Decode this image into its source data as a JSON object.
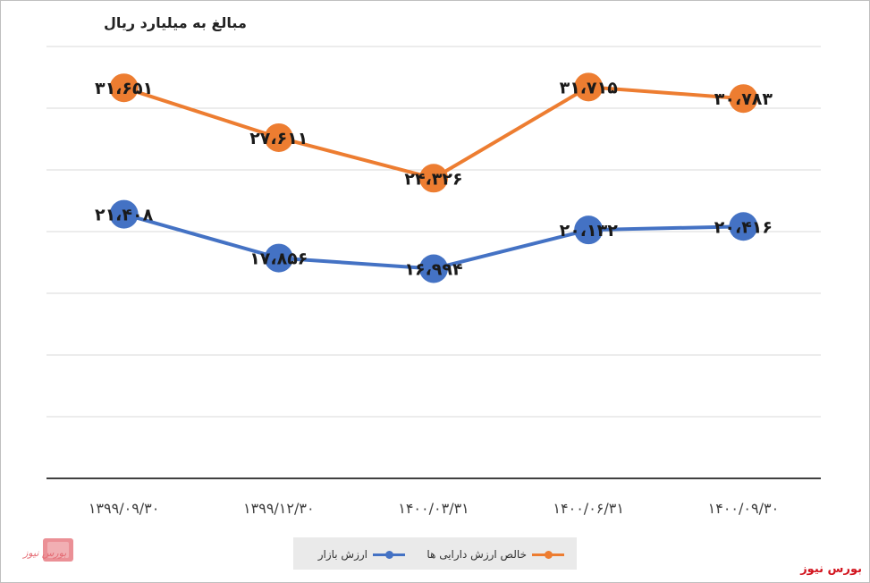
{
  "chart_data": {
    "type": "line",
    "unit_label": "مبالغ به میلیارد ریال",
    "categories": [
      "۱۳۹۹/۰۹/۳۰",
      "۱۳۹۹/۱۲/۳۰",
      "۱۴۰۰/۰۳/۳۱",
      "۱۴۰۰/۰۶/۳۱",
      "۱۴۰۰/۰۹/۳۰"
    ],
    "series": [
      {
        "name": "خالص ارزش دارایی ها",
        "color": "#ed7d31",
        "values": [
          31651,
          27611,
          24326,
          31715,
          30783
        ],
        "labels": [
          "۳۱،۶۵۱",
          "۲۷،۶۱۱",
          "۲۴،۳۲۶",
          "۳۱،۷۱۵",
          "۳۰،۷۸۳"
        ]
      },
      {
        "name": "ارزش بازار",
        "color": "#4472c4",
        "values": [
          21408,
          17856,
          16994,
          20132,
          20416
        ],
        "labels": [
          "۲۱،۴۰۸",
          "۱۷،۸۵۶",
          "۱۶،۹۹۴",
          "۲۰،۱۳۲",
          "۲۰،۴۱۶"
        ]
      }
    ],
    "ylim": [
      0,
      35000
    ],
    "gridlines": true,
    "legend_position": "bottom"
  },
  "brand": {
    "name": "بورس نیوز",
    "logo_text": "بورس نیوز",
    "color": "#d2141e"
  }
}
